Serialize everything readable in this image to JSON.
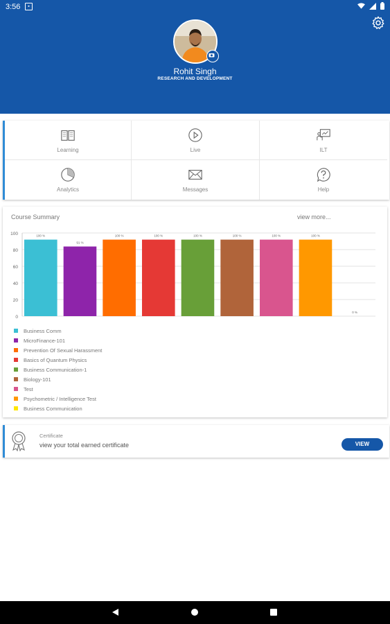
{
  "status_bar": {
    "time": "3:56"
  },
  "profile": {
    "name": "Rohit Singh",
    "department": "RESEARCH AND DEVELOPMENT"
  },
  "menu": [
    {
      "label": "Learning",
      "icon": "book-icon"
    },
    {
      "label": "Live",
      "icon": "play-icon"
    },
    {
      "label": "ILT",
      "icon": "classroom-icon"
    },
    {
      "label": "Analytics",
      "icon": "pie-chart-icon"
    },
    {
      "label": "Messages",
      "icon": "mail-icon"
    },
    {
      "label": "Help",
      "icon": "help-icon"
    }
  ],
  "summary": {
    "title": "Course Summary",
    "view_more": "view more..."
  },
  "chart_data": {
    "type": "bar",
    "categories": [
      "Business Comm",
      "MicroFinance-101",
      "Prevention Of Sexual Harassment",
      "Basics of Quantum Physics",
      "Business Communication-1",
      "Biology-101",
      "Test",
      "Psychometric / Intelligence Test",
      "Business Communication"
    ],
    "values": [
      100,
      91,
      100,
      100,
      100,
      100,
      100,
      100,
      0
    ],
    "data_labels": [
      "100 %",
      "91 %",
      "100 %",
      "100 %",
      "100 %",
      "100 %",
      "100 %",
      "100 %",
      "0 %"
    ],
    "colors": [
      "#3bbfd4",
      "#8e24aa",
      "#ff6d00",
      "#e53935",
      "#689f38",
      "#b0643a",
      "#d9558e",
      "#ff9800",
      "#ffe600"
    ],
    "yticks": [
      0,
      20,
      40,
      60,
      80,
      100
    ],
    "ylim": [
      0,
      100
    ],
    "grid": true,
    "legend_position": "bottom-left"
  },
  "certificate": {
    "title": "Certificate",
    "subtitle": "view your total earned certificate",
    "button": "VIEW"
  },
  "colors": {
    "primary": "#1557a8",
    "accent": "#2f8bd6"
  }
}
